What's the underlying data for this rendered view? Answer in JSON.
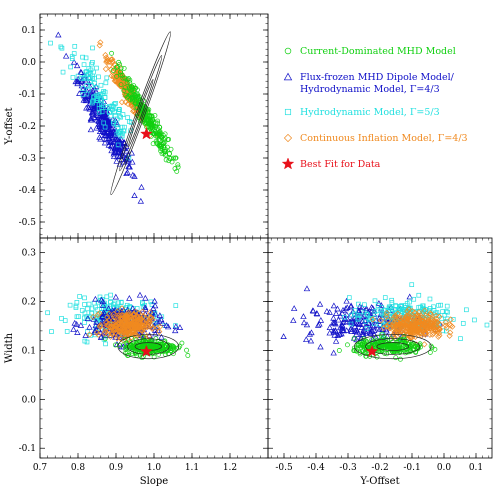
{
  "chart_data": [
    {
      "type": "scatter",
      "panel": "slope-yoffset",
      "xlabel": "",
      "ylabel": "Y-offset",
      "xlim": [
        0.7,
        1.3
      ],
      "ylim": [
        -0.55,
        0.15
      ],
      "x_ticks": [],
      "y_ticks": [
        "0.1",
        "0.0",
        "-0.1",
        "-0.2",
        "-0.3",
        "-0.4",
        "-0.5"
      ],
      "series": [
        {
          "key": "flux",
          "color": "#1010c8",
          "marker": "triangle",
          "cx": 0.87,
          "cy": -0.19,
          "sx": 0.035,
          "sy": 0.075,
          "rho": -0.93,
          "n": 320
        },
        {
          "key": "hydro53",
          "color": "#22e0e0",
          "marker": "square",
          "cx": 0.86,
          "cy": -0.12,
          "sx": 0.05,
          "sy": 0.09,
          "rho": -0.9,
          "n": 120
        },
        {
          "key": "cont",
          "color": "#f08a20",
          "marker": "diamond",
          "cx": 0.93,
          "cy": -0.09,
          "sx": 0.025,
          "sy": 0.05,
          "rho": -0.95,
          "n": 260
        },
        {
          "key": "current",
          "color": "#10d010",
          "marker": "circle",
          "cx": 0.98,
          "cy": -0.17,
          "sx": 0.035,
          "sy": 0.07,
          "rho": -0.96,
          "n": 260
        }
      ],
      "best_fit": {
        "x": 0.98,
        "y": -0.225
      },
      "contours": {
        "cx": 0.965,
        "cy": -0.16,
        "rx": [
          0.05,
          0.085,
          0.12
        ],
        "ry": [
          0.008,
          0.016,
          0.025
        ],
        "angle": -70
      }
    },
    {
      "type": "scatter",
      "panel": "slope-width",
      "xlabel": "Slope",
      "ylabel": "Width",
      "xlim": [
        0.7,
        1.3
      ],
      "ylim": [
        -0.12,
        0.33
      ],
      "x_ticks": [
        "0.7",
        "0.8",
        "0.9",
        "1.0",
        "1.1",
        "1.2"
      ],
      "y_ticks": [
        "0.3",
        "0.2",
        "0.1",
        "0.0",
        "-0.1"
      ],
      "series": [
        {
          "key": "hydro53",
          "color": "#22e0e0",
          "marker": "square",
          "cx": 0.9,
          "cy": 0.17,
          "sx": 0.06,
          "sy": 0.018,
          "rho": 0.0,
          "n": 200
        },
        {
          "key": "flux",
          "color": "#1010c8",
          "marker": "triangle",
          "cx": 0.92,
          "cy": 0.155,
          "sx": 0.05,
          "sy": 0.02,
          "rho": 0.0,
          "n": 220
        },
        {
          "key": "cont",
          "color": "#f08a20",
          "marker": "diamond",
          "cx": 0.93,
          "cy": 0.152,
          "sx": 0.03,
          "sy": 0.013,
          "rho": 0.0,
          "n": 280
        },
        {
          "key": "current",
          "color": "#10d010",
          "marker": "circle",
          "cx": 0.99,
          "cy": 0.107,
          "sx": 0.035,
          "sy": 0.008,
          "rho": 0.0,
          "n": 260
        }
      ],
      "best_fit": {
        "x": 0.98,
        "y": 0.098
      },
      "contours": {
        "cx": 0.985,
        "cy": 0.108,
        "rx": [
          0.035,
          0.055,
          0.08
        ],
        "ry": [
          0.008,
          0.016,
          0.025
        ],
        "angle": 0
      }
    },
    {
      "type": "scatter",
      "panel": "yoffset-width",
      "xlabel": "Y-Offset",
      "ylabel": "",
      "xlim": [
        -0.55,
        0.15
      ],
      "ylim": [
        -0.12,
        0.33
      ],
      "x_ticks": [
        "-0.5",
        "-0.4",
        "-0.3",
        "-0.2",
        "-0.1",
        "0.0",
        "0.1"
      ],
      "y_ticks": [],
      "series": [
        {
          "key": "flux",
          "color": "#1010c8",
          "marker": "triangle",
          "cx": -0.25,
          "cy": 0.155,
          "sx": 0.09,
          "sy": 0.02,
          "rho": 0.0,
          "n": 220
        },
        {
          "key": "hydro53",
          "color": "#22e0e0",
          "marker": "square",
          "cx": -0.13,
          "cy": 0.17,
          "sx": 0.08,
          "sy": 0.018,
          "rho": 0.0,
          "n": 200
        },
        {
          "key": "cont",
          "color": "#f08a20",
          "marker": "diamond",
          "cx": -0.09,
          "cy": 0.152,
          "sx": 0.045,
          "sy": 0.013,
          "rho": 0.0,
          "n": 280
        },
        {
          "key": "current",
          "color": "#10d010",
          "marker": "circle",
          "cx": -0.17,
          "cy": 0.107,
          "sx": 0.055,
          "sy": 0.008,
          "rho": 0.0,
          "n": 260
        }
      ],
      "best_fit": {
        "x": -0.225,
        "y": 0.098
      },
      "contours": {
        "cx": -0.16,
        "cy": 0.108,
        "rx": [
          0.05,
          0.085,
          0.12
        ],
        "ry": [
          0.008,
          0.016,
          0.025
        ],
        "angle": 0
      }
    }
  ],
  "legend": {
    "entries": [
      {
        "key": "current",
        "marker": "circle",
        "color": "#10d010",
        "lines": [
          "Current-Dominated MHD Model"
        ]
      },
      {
        "key": "flux",
        "marker": "triangle",
        "color": "#1010c8",
        "lines": [
          "Flux-frozen MHD Dipole Model/",
          "Hydrodynamic Model, Γ=4/3"
        ]
      },
      {
        "key": "hydro53",
        "marker": "square",
        "color": "#22e0e0",
        "lines": [
          "Hydrodynamic Model, Γ=5/3"
        ]
      },
      {
        "key": "cont",
        "marker": "diamond",
        "color": "#f08a20",
        "lines": [
          "Continuous Inflation Model, Γ=4/3"
        ]
      },
      {
        "key": "best",
        "marker": "star",
        "color": "#e8101a",
        "lines": [
          "Best Fit for Data"
        ]
      }
    ]
  }
}
